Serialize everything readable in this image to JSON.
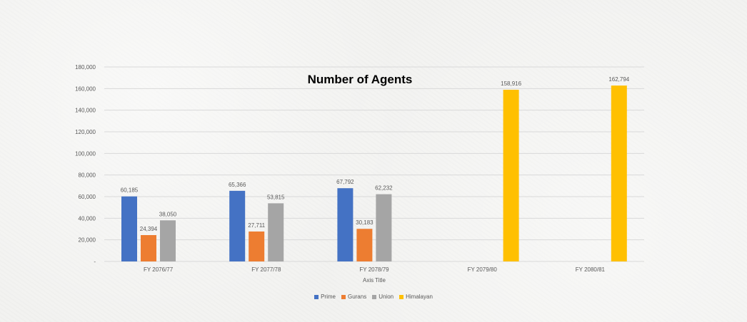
{
  "chart_data": {
    "type": "bar",
    "title": "Number of Agents",
    "xlabel": "Axis Title",
    "ylabel": "",
    "ylim": [
      0,
      180000
    ],
    "y_ticks": [
      "-",
      "20,000",
      "40,000",
      "60,000",
      "80,000",
      "100,000",
      "120,000",
      "140,000",
      "160,000",
      "180,000"
    ],
    "y_tick_values": [
      0,
      20000,
      40000,
      60000,
      80000,
      100000,
      120000,
      140000,
      160000,
      180000
    ],
    "grid": true,
    "legend_position": "bottom",
    "categories": [
      "FY 2076/77",
      "FY 2077/78",
      "FY 2078/79",
      "FY 2079/80",
      "FY 2080/81"
    ],
    "series": [
      {
        "name": "Prime",
        "color": "#4472C4",
        "values": [
          60185,
          65366,
          67792,
          null,
          null
        ],
        "labels": [
          "60,185",
          "65,366",
          "67,792",
          null,
          null
        ]
      },
      {
        "name": "Gurans",
        "color": "#ED7D31",
        "values": [
          24394,
          27711,
          30183,
          null,
          null
        ],
        "labels": [
          "24,394",
          "27,711",
          "30,183",
          null,
          null
        ]
      },
      {
        "name": "Union",
        "color": "#A5A5A5",
        "values": [
          38050,
          53815,
          62232,
          null,
          null
        ],
        "labels": [
          "38,050",
          "53,815",
          "62,232",
          null,
          null
        ]
      },
      {
        "name": "Himalayan",
        "color": "#FFC000",
        "values": [
          null,
          null,
          null,
          158916,
          162794
        ],
        "labels": [
          null,
          null,
          null,
          "158,916",
          "162,794"
        ]
      }
    ]
  }
}
